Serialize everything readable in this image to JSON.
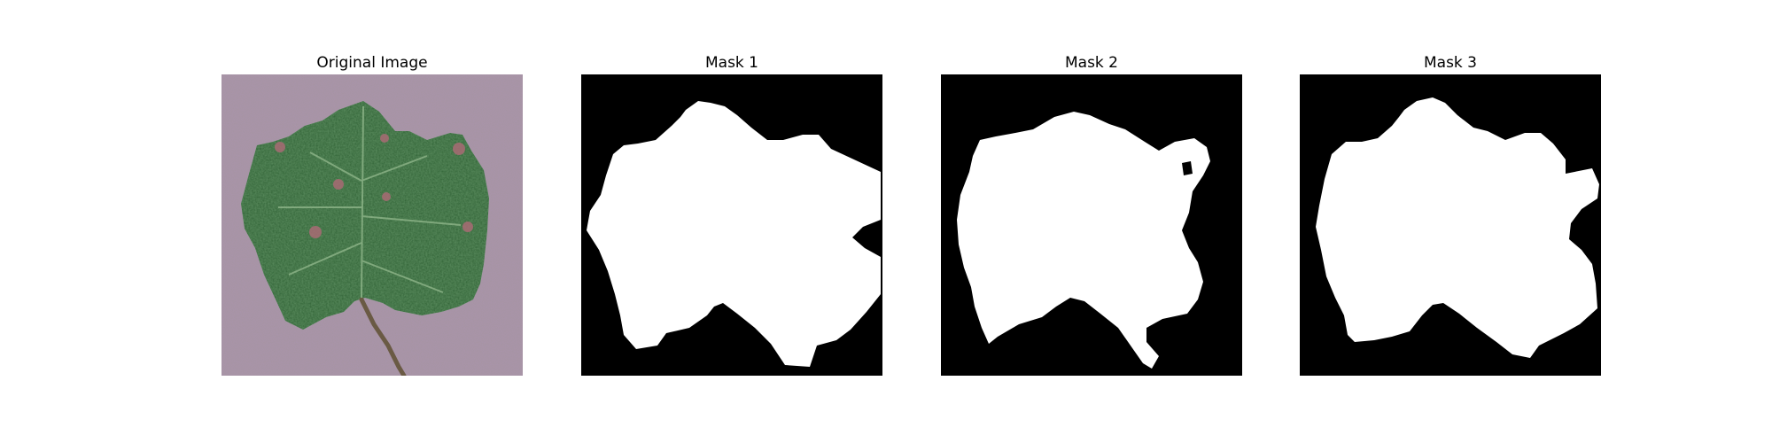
{
  "panels": [
    {
      "title": "Original Image"
    },
    {
      "title": "Mask 1"
    },
    {
      "title": "Mask 2"
    },
    {
      "title": "Mask 3"
    }
  ]
}
